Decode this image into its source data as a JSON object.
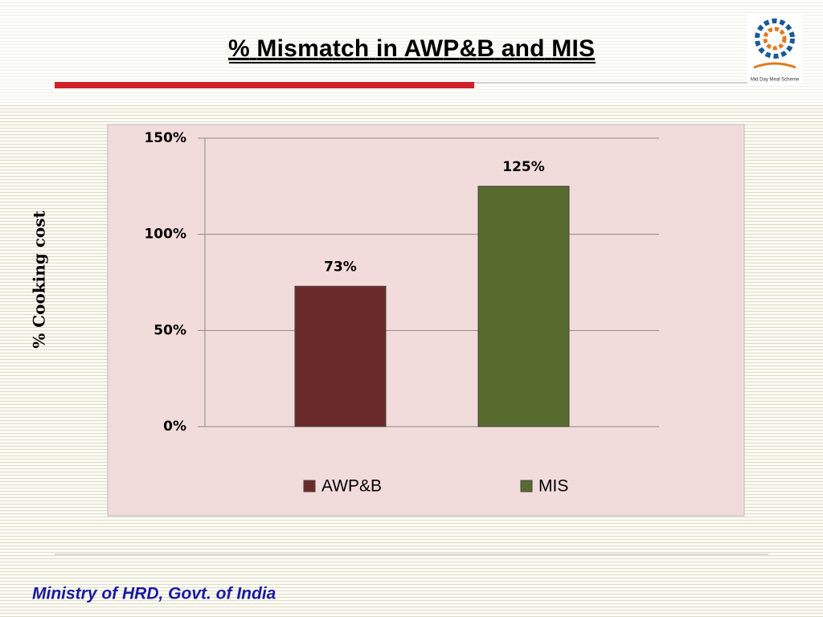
{
  "chart_data": {
    "type": "bar",
    "title": "% Mismatch in AWP&B and MIS",
    "y_label": "% Cooking cost",
    "categories": [
      null
    ],
    "series": [
      {
        "name": "AWP&B",
        "color": "#6b2a2a",
        "values": [
          73
        ],
        "value_labels": [
          "73%"
        ]
      },
      {
        "name": "MIS",
        "color": "#576b2e",
        "values": [
          125
        ],
        "value_labels": [
          "125%"
        ]
      }
    ],
    "ylim": [
      0,
      150
    ],
    "yticks": [
      {
        "value": 0,
        "label": "0%"
      },
      {
        "value": 50,
        "label": "50%"
      },
      {
        "value": 100,
        "label": "100%"
      },
      {
        "value": 150,
        "label": "150%"
      }
    ],
    "grid": true,
    "legend": "bottom"
  },
  "logo_caption": "Mid Day Meal Scheme",
  "footer": "Ministry of HRD, Govt. of India"
}
